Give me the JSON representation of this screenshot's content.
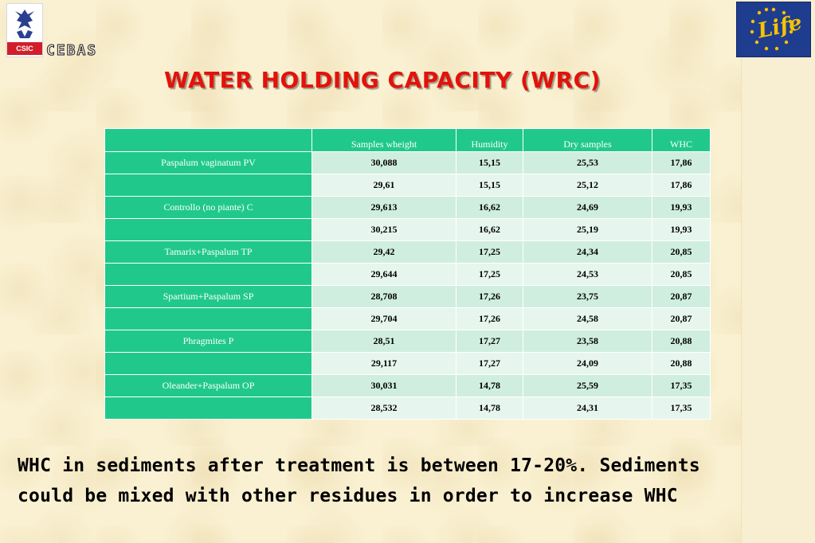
{
  "logos": {
    "csic_label": "CSIC",
    "cebas_label": "CEBAS",
    "life_label": "Life"
  },
  "title": "WATER  HOLDING CAPACITY (WRC)",
  "table": {
    "headers": [
      "",
      "Samples wheight",
      "Humidity",
      "Dry samples",
      "WHC"
    ],
    "rows": [
      {
        "label": "Paspalum vaginatum PV",
        "values": [
          "30,088",
          "15,15",
          "25,53",
          "17,86"
        ]
      },
      {
        "label": "",
        "values": [
          "29,61",
          "15,15",
          "25,12",
          "17,86"
        ]
      },
      {
        "label": "Controllo (no piante) C",
        "values": [
          "29,613",
          "16,62",
          "24,69",
          "19,93"
        ]
      },
      {
        "label": "",
        "values": [
          "30,215",
          "16,62",
          "25,19",
          "19,93"
        ]
      },
      {
        "label": "Tamarix+Paspalum TP",
        "values": [
          "29,42",
          "17,25",
          "24,34",
          "20,85"
        ]
      },
      {
        "label": "",
        "values": [
          "29,644",
          "17,25",
          "24,53",
          "20,85"
        ]
      },
      {
        "label": "Spartium+Paspalum SP",
        "values": [
          "28,708",
          "17,26",
          "23,75",
          "20,87"
        ]
      },
      {
        "label": "",
        "values": [
          "29,704",
          "17,26",
          "24,58",
          "20,87"
        ]
      },
      {
        "label": "Phragmites P",
        "values": [
          "28,51",
          "17,27",
          "23,58",
          "20,88"
        ]
      },
      {
        "label": "",
        "values": [
          "29,117",
          "17,27",
          "24,09",
          "20,88"
        ]
      },
      {
        "label": "Oleander+Paspalum OP",
        "values": [
          "30,031",
          "14,78",
          "25,59",
          "17,35"
        ]
      },
      {
        "label": "",
        "values": [
          "28,532",
          "14,78",
          "24,31",
          "17,35"
        ]
      }
    ]
  },
  "conclusion": {
    "line1": "WHC in sediments after treatment is between 17-20%. Sediments",
    "line2": "could be mixed with other residues in order to increase WHC"
  },
  "colors": {
    "title": "#e3120b",
    "table_header": "#20c98b",
    "row_odd": "#cfeee0",
    "row_even": "#e6f6ee",
    "background": "#faf1d2"
  }
}
